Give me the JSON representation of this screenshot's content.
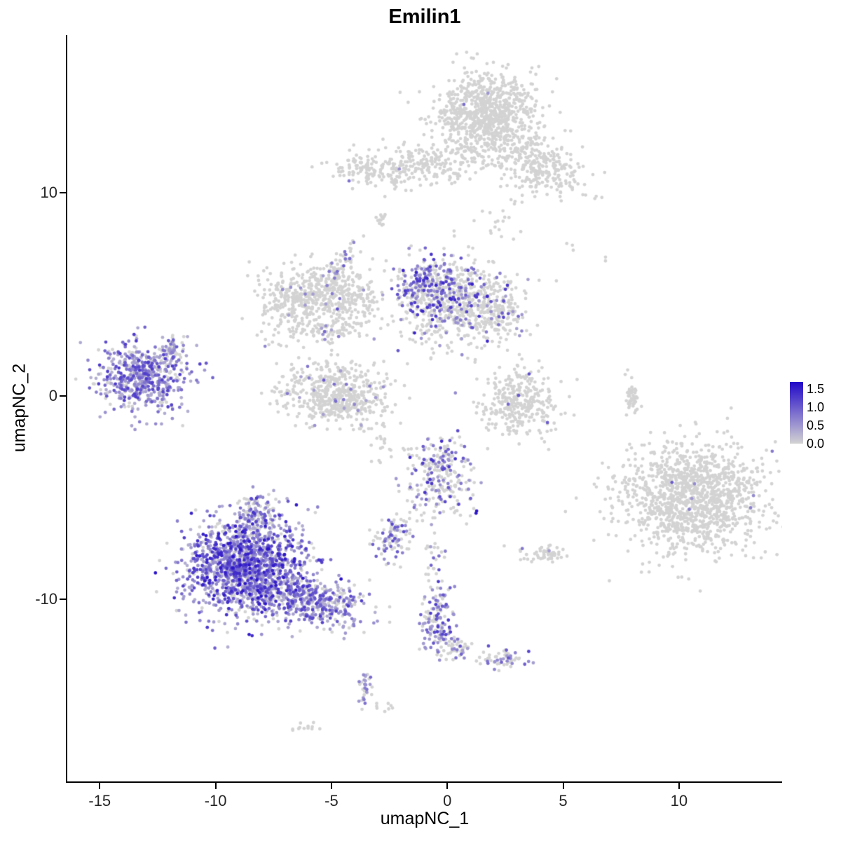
{
  "title": "Emilin1",
  "axes": {
    "x": {
      "label": "umapNC_1",
      "ticks": [
        -15,
        -10,
        -5,
        0,
        5,
        10
      ]
    },
    "y": {
      "label": "umapNC_2",
      "ticks": [
        -10,
        0,
        10
      ]
    }
  },
  "legend": {
    "labels": [
      "1.5",
      "1.0",
      "0.5",
      "0.0"
    ],
    "values": [
      1.5,
      1.0,
      0.5,
      0.0
    ],
    "bar_max": 1.7,
    "color_low": "#d3d3d3",
    "color_high": "#2209c8"
  },
  "chart_data": {
    "type": "scatter",
    "title": "Emilin1",
    "xlabel": "umapNC_1",
    "ylabel": "umapNC_2",
    "xlim": [
      -16.4,
      14.45
    ],
    "ylim": [
      -18.97,
      17.76
    ],
    "grid": false,
    "legend_position": "right",
    "point_radius": 2.4,
    "color_scale": {
      "low": "#d3d3d3",
      "high": "#2209c8",
      "domain": [
        0,
        1.7
      ]
    },
    "value_variable": "Emilin1 expression",
    "clusters": [
      {
        "name": "top-main",
        "n": 850,
        "cx": 1.7,
        "cy": 13.9,
        "sx": 1.05,
        "sy": 0.95,
        "rot": 0,
        "frac": 0.004,
        "emin": 0.5,
        "emax": 1.0
      },
      {
        "name": "top-arm-right",
        "n": 300,
        "cx": 3.9,
        "cy": 11.4,
        "sx": 1.15,
        "sy": 0.75,
        "rot": -25,
        "frac": 0.008,
        "emin": 0.5,
        "emax": 1.2
      },
      {
        "name": "top-band-left",
        "n": 300,
        "cx": -1.6,
        "cy": 11.3,
        "sx": 1.6,
        "sy": 0.5,
        "rot": 4,
        "frac": 0.004,
        "emin": 0.4,
        "emax": 0.9
      },
      {
        "name": "top-band-west",
        "n": 25,
        "cx": -3.8,
        "cy": 11.2,
        "sx": 0.4,
        "sy": 0.3,
        "rot": 0,
        "frac": 0,
        "emin": 0,
        "emax": 0
      },
      {
        "name": "isolated-small",
        "n": 14,
        "cx": -2.9,
        "cy": 8.8,
        "sx": 0.15,
        "sy": 0.35,
        "rot": 0,
        "frac": 0,
        "emin": 0,
        "emax": 0
      },
      {
        "name": "midleft-ring-a",
        "n": 320,
        "cx": -6.4,
        "cy": 4.7,
        "sx": 0.85,
        "sy": 0.85,
        "rot": 0,
        "frac": 0.05,
        "emin": 0.4,
        "emax": 1.1
      },
      {
        "name": "midleft-ring-b",
        "n": 240,
        "cx": -4.5,
        "cy": 5.0,
        "sx": 0.8,
        "sy": 0.55,
        "rot": -15,
        "frac": 0.03,
        "emin": 0.4,
        "emax": 1.0
      },
      {
        "name": "midleft-ring-tail",
        "n": 90,
        "cx": -5.2,
        "cy": 3.3,
        "sx": 1.0,
        "sy": 0.35,
        "rot": 8,
        "frac": 0.02,
        "emin": 0.4,
        "emax": 0.9
      },
      {
        "name": "midleft-arm",
        "n": 60,
        "cx": -4.6,
        "cy": 6.4,
        "sx": 0.25,
        "sy": 0.6,
        "rot": -30,
        "frac": 0.12,
        "emin": 0.4,
        "emax": 1.0
      },
      {
        "name": "mid-main",
        "n": 650,
        "cx": 0.3,
        "cy": 4.7,
        "sx": 1.25,
        "sy": 0.95,
        "rot": 0,
        "frac": 0.22,
        "emin": 0.4,
        "emax": 1.5
      },
      {
        "name": "mid-hot",
        "n": 160,
        "cx": -1.0,
        "cy": 5.7,
        "sx": 0.55,
        "sy": 0.6,
        "rot": 0,
        "frac": 0.55,
        "emin": 0.5,
        "emax": 1.5
      },
      {
        "name": "mid-right-lobe",
        "n": 130,
        "cx": 2.2,
        "cy": 4.1,
        "sx": 0.55,
        "sy": 0.6,
        "rot": 0,
        "frac": 0.15,
        "emin": 0.4,
        "emax": 1.3
      },
      {
        "name": "mid-south-trail",
        "n": 35,
        "cx": 0.3,
        "cy": 2.6,
        "sx": 0.9,
        "sy": 0.5,
        "rot": 0,
        "frac": 0.05,
        "emin": 0.4,
        "emax": 0.9
      },
      {
        "name": "crescent-left",
        "n": 430,
        "cx": -4.9,
        "cy": 0.3,
        "sx": 1.1,
        "sy": 0.75,
        "rot": 0,
        "frac": 0.04,
        "emin": 0.4,
        "emax": 1.0
      },
      {
        "name": "crescent-left-bottom",
        "n": 120,
        "cx": -4.6,
        "cy": -0.6,
        "sx": 0.8,
        "sy": 0.3,
        "rot": 0,
        "frac": 0.03,
        "emin": 0.4,
        "emax": 0.9
      },
      {
        "name": "left-island",
        "n": 560,
        "cx": -13.2,
        "cy": 0.9,
        "sx": 0.9,
        "sy": 0.8,
        "rot": 0,
        "frac": 0.78,
        "emin": 0.3,
        "emax": 1.3
      },
      {
        "name": "left-island-tail",
        "n": 70,
        "cx": -11.9,
        "cy": 2.1,
        "sx": 0.35,
        "sy": 0.5,
        "rot": -30,
        "frac": 0.5,
        "emin": 0.3,
        "emax": 1.1
      },
      {
        "name": "right-crescent",
        "n": 330,
        "cx": 3.1,
        "cy": -0.3,
        "sx": 0.8,
        "sy": 0.85,
        "rot": 0,
        "frac": 0.012,
        "emin": 0.6,
        "emax": 1.3
      },
      {
        "name": "thin-strip",
        "n": 45,
        "cx": 8.0,
        "cy": -0.1,
        "sx": 0.13,
        "sy": 0.6,
        "rot": 0,
        "frac": 0,
        "emin": 0,
        "emax": 0
      },
      {
        "name": "right-big",
        "n": 1350,
        "cx": 10.6,
        "cy": -5.0,
        "sx": 1.55,
        "sy": 1.35,
        "rot": 0,
        "frac": 0.004,
        "emin": 0.5,
        "emax": 1.1
      },
      {
        "name": "center-small",
        "n": 260,
        "cx": -0.3,
        "cy": -3.8,
        "sx": 0.7,
        "sy": 0.9,
        "rot": 0,
        "frac": 0.3,
        "emin": 0.4,
        "emax": 1.4
      },
      {
        "name": "center-dark-dot",
        "n": 2,
        "cx": 1.3,
        "cy": -5.7,
        "sx": 0.06,
        "sy": 0.06,
        "rot": 0,
        "frac": 1,
        "emin": 1.4,
        "emax": 1.7
      },
      {
        "name": "small-k",
        "n": 90,
        "cx": -2.4,
        "cy": -7.0,
        "sx": 0.45,
        "sy": 0.45,
        "rot": 0,
        "frac": 0.5,
        "emin": 0.4,
        "emax": 1.2
      },
      {
        "name": "bottom-main",
        "n": 1500,
        "cx": -8.6,
        "cy": -8.4,
        "sx": 1.3,
        "sy": 1.15,
        "rot": 0,
        "frac": 0.82,
        "emin": 0.3,
        "emax": 1.6
      },
      {
        "name": "bottom-tail",
        "n": 430,
        "cx": -5.8,
        "cy": -10.1,
        "sx": 1.2,
        "sy": 0.55,
        "rot": -18,
        "frac": 0.72,
        "emin": 0.3,
        "emax": 1.3
      },
      {
        "name": "bottom-offshoot",
        "n": 130,
        "cx": -8.2,
        "cy": -5.9,
        "sx": 0.5,
        "sy": 0.55,
        "rot": 0,
        "frac": 0.6,
        "emin": 0.3,
        "emax": 1.2
      },
      {
        "name": "south-column",
        "n": 150,
        "cx": -0.4,
        "cy": -11.2,
        "sx": 0.35,
        "sy": 0.85,
        "rot": 0,
        "frac": 0.5,
        "emin": 0.4,
        "emax": 1.3
      },
      {
        "name": "south-column-ext",
        "n": 45,
        "cx": 0.4,
        "cy": -12.4,
        "sx": 0.3,
        "sy": 0.3,
        "rot": 0,
        "frac": 0.4,
        "emin": 0.4,
        "emax": 1.1
      },
      {
        "name": "south-right",
        "n": 60,
        "cx": 2.3,
        "cy": -12.9,
        "sx": 0.5,
        "sy": 0.28,
        "rot": 0,
        "frac": 0.45,
        "emin": 0.4,
        "emax": 1.2
      },
      {
        "name": "south-tiny",
        "n": 30,
        "cx": -3.5,
        "cy": -14.4,
        "sx": 0.16,
        "sy": 0.55,
        "rot": 0,
        "frac": 0.4,
        "emin": 0.4,
        "emax": 1.0
      },
      {
        "name": "speck-a",
        "n": 12,
        "cx": -6.3,
        "cy": -16.3,
        "sx": 0.3,
        "sy": 0.15,
        "rot": 0,
        "frac": 0,
        "emin": 0,
        "emax": 0
      },
      {
        "name": "speck-b",
        "n": 8,
        "cx": -2.7,
        "cy": -15.4,
        "sx": 0.2,
        "sy": 0.12,
        "rot": 0,
        "frac": 0,
        "emin": 0,
        "emax": 0
      },
      {
        "name": "east-strip",
        "n": 55,
        "cx": 4.3,
        "cy": -7.8,
        "sx": 0.55,
        "sy": 0.22,
        "rot": 0,
        "frac": 0.03,
        "emin": 0.4,
        "emax": 0.9
      },
      {
        "name": "stray-a",
        "n": 3,
        "cx": 5.3,
        "cy": 7.4,
        "sx": 0.15,
        "sy": 0.25,
        "rot": 0,
        "frac": 0,
        "emin": 0,
        "emax": 0
      },
      {
        "name": "stray-b",
        "n": 2,
        "cx": 6.9,
        "cy": 6.8,
        "sx": 0.1,
        "sy": 0.1,
        "rot": 0,
        "frac": 0,
        "emin": 0,
        "emax": 0
      },
      {
        "name": "stray-c",
        "n": 20,
        "cx": 1.8,
        "cy": 8.2,
        "sx": 0.8,
        "sy": 0.7,
        "rot": 0,
        "frac": 0.05,
        "emin": 0.4,
        "emax": 1.0
      },
      {
        "name": "connector-jm",
        "n": 30,
        "cx": -0.6,
        "cy": -8.0,
        "sx": 0.25,
        "sy": 1.2,
        "rot": 0,
        "frac": 0.2,
        "emin": 0.4,
        "emax": 1.0
      },
      {
        "name": "connector-kj",
        "n": 15,
        "cx": -1.5,
        "cy": -5.9,
        "sx": 0.5,
        "sy": 0.4,
        "rot": 0,
        "frac": 0.2,
        "emin": 0.4,
        "emax": 1.0
      },
      {
        "name": "connector-e",
        "n": 25,
        "cx": -3.0,
        "cy": -1.9,
        "sx": 0.35,
        "sy": 0.8,
        "rot": 0,
        "frac": 0.08,
        "emin": 0.4,
        "emax": 0.9
      }
    ]
  }
}
